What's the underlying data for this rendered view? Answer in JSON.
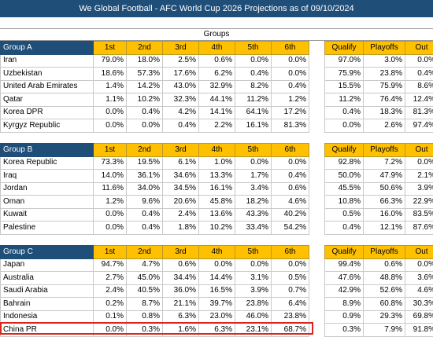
{
  "title": "We Global Football - AFC World Cup 2026 Projections as of 09/10/2024",
  "groups_label": "Groups",
  "place_headers": [
    "1st",
    "2nd",
    "3rd",
    "4th",
    "5th",
    "6th"
  ],
  "outcome_headers": [
    "Qualify",
    "Playoffs",
    "Out"
  ],
  "groups": [
    {
      "name": "Group A",
      "rows": [
        {
          "team": "Iran",
          "places": [
            "79.0%",
            "18.0%",
            "2.5%",
            "0.6%",
            "0.0%",
            "0.0%"
          ],
          "outcomes": [
            "97.0%",
            "3.0%",
            "0.0%"
          ]
        },
        {
          "team": "Uzbekistan",
          "places": [
            "18.6%",
            "57.3%",
            "17.6%",
            "6.2%",
            "0.4%",
            "0.0%"
          ],
          "outcomes": [
            "75.9%",
            "23.8%",
            "0.4%"
          ]
        },
        {
          "team": "United Arab Emirates",
          "places": [
            "1.4%",
            "14.2%",
            "43.0%",
            "32.9%",
            "8.2%",
            "0.4%"
          ],
          "outcomes": [
            "15.5%",
            "75.9%",
            "8.6%"
          ]
        },
        {
          "team": "Qatar",
          "places": [
            "1.1%",
            "10.2%",
            "32.3%",
            "44.1%",
            "11.2%",
            "1.2%"
          ],
          "outcomes": [
            "11.2%",
            "76.4%",
            "12.4%"
          ]
        },
        {
          "team": "Korea DPR",
          "places": [
            "0.0%",
            "0.4%",
            "4.2%",
            "14.1%",
            "64.1%",
            "17.2%"
          ],
          "outcomes": [
            "0.4%",
            "18.3%",
            "81.3%"
          ]
        },
        {
          "team": "Kyrgyz Republic",
          "places": [
            "0.0%",
            "0.0%",
            "0.4%",
            "2.2%",
            "16.1%",
            "81.3%"
          ],
          "outcomes": [
            "0.0%",
            "2.6%",
            "97.4%"
          ]
        }
      ]
    },
    {
      "name": "Group B",
      "rows": [
        {
          "team": "Korea Republic",
          "places": [
            "73.3%",
            "19.5%",
            "6.1%",
            "1.0%",
            "0.0%",
            "0.0%"
          ],
          "outcomes": [
            "92.8%",
            "7.2%",
            "0.0%"
          ]
        },
        {
          "team": "Iraq",
          "places": [
            "14.0%",
            "36.1%",
            "34.6%",
            "13.3%",
            "1.7%",
            "0.4%"
          ],
          "outcomes": [
            "50.0%",
            "47.9%",
            "2.1%"
          ]
        },
        {
          "team": "Jordan",
          "places": [
            "11.6%",
            "34.0%",
            "34.5%",
            "16.1%",
            "3.4%",
            "0.6%"
          ],
          "outcomes": [
            "45.5%",
            "50.6%",
            "3.9%"
          ]
        },
        {
          "team": "Oman",
          "places": [
            "1.2%",
            "9.6%",
            "20.6%",
            "45.8%",
            "18.2%",
            "4.6%"
          ],
          "outcomes": [
            "10.8%",
            "66.3%",
            "22.9%"
          ]
        },
        {
          "team": "Kuwait",
          "places": [
            "0.0%",
            "0.4%",
            "2.4%",
            "13.6%",
            "43.3%",
            "40.2%"
          ],
          "outcomes": [
            "0.5%",
            "16.0%",
            "83.5%"
          ]
        },
        {
          "team": "Palestine",
          "places": [
            "0.0%",
            "0.4%",
            "1.8%",
            "10.2%",
            "33.4%",
            "54.2%"
          ],
          "outcomes": [
            "0.4%",
            "12.1%",
            "87.6%"
          ]
        }
      ]
    },
    {
      "name": "Group C",
      "rows": [
        {
          "team": "Japan",
          "places": [
            "94.7%",
            "4.7%",
            "0.6%",
            "0.0%",
            "0.0%",
            "0.0%"
          ],
          "outcomes": [
            "99.4%",
            "0.6%",
            "0.0%"
          ]
        },
        {
          "team": "Australia",
          "places": [
            "2.7%",
            "45.0%",
            "34.4%",
            "14.4%",
            "3.1%",
            "0.5%"
          ],
          "outcomes": [
            "47.6%",
            "48.8%",
            "3.6%"
          ]
        },
        {
          "team": "Saudi Arabia",
          "places": [
            "2.4%",
            "40.5%",
            "36.0%",
            "16.5%",
            "3.9%",
            "0.7%"
          ],
          "outcomes": [
            "42.9%",
            "52.6%",
            "4.6%"
          ]
        },
        {
          "team": "Bahrain",
          "places": [
            "0.2%",
            "8.7%",
            "21.1%",
            "39.7%",
            "23.8%",
            "6.4%"
          ],
          "outcomes": [
            "8.9%",
            "60.8%",
            "30.3%"
          ]
        },
        {
          "team": "Indonesia",
          "places": [
            "0.1%",
            "0.8%",
            "6.3%",
            "23.0%",
            "46.0%",
            "23.8%"
          ],
          "outcomes": [
            "0.9%",
            "29.3%",
            "69.8%"
          ]
        },
        {
          "team": "China PR",
          "places": [
            "0.0%",
            "0.3%",
            "1.6%",
            "6.3%",
            "23.1%",
            "68.7%"
          ],
          "outcomes": [
            "0.3%",
            "7.9%",
            "91.8%"
          ]
        }
      ]
    }
  ]
}
